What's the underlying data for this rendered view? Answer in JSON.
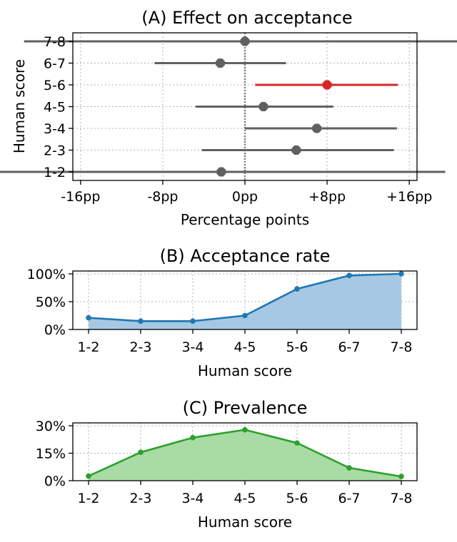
{
  "chart_data": [
    {
      "type": "forest",
      "title": "(A) Effect on acceptance",
      "xlabel": "Percentage points",
      "ylabel": "Human score",
      "xlim": [
        -16,
        16
      ],
      "xticks": [
        -16,
        -8,
        0,
        8,
        16
      ],
      "xtick_labels": [
        "-16pp",
        "-8pp",
        "0pp",
        "+8pp",
        "+16pp"
      ],
      "categories": [
        "1-2",
        "2-3",
        "3-4",
        "4-5",
        "5-6",
        "6-7",
        "7-8"
      ],
      "estimates": [
        -2.3,
        5.0,
        7.0,
        1.8,
        8.0,
        -2.4,
        0.0
      ],
      "ci_low": [
        -24.0,
        -4.2,
        0.0,
        -4.8,
        1.0,
        -8.8,
        -21.5
      ],
      "ci_high": [
        19.5,
        14.5,
        14.8,
        8.6,
        14.9,
        4.0,
        21.8
      ],
      "highlight_index": 4,
      "grid": true,
      "reference_line": 0,
      "colors": {
        "default": "#606060",
        "highlight": "#d62728",
        "reference": "#808080"
      }
    },
    {
      "type": "area",
      "title": "(B) Acceptance rate",
      "xlabel": "Human score",
      "categories": [
        "1-2",
        "2-3",
        "3-4",
        "4-5",
        "5-6",
        "6-7",
        "7-8"
      ],
      "values": [
        21,
        15,
        15,
        25,
        73,
        97,
        100
      ],
      "ylim": [
        0,
        100
      ],
      "yticks": [
        0,
        50,
        100
      ],
      "ytick_labels": [
        "0%",
        "50%",
        "100%"
      ],
      "grid": true,
      "colors": {
        "line": "#1f77b4",
        "fill": "#a6c8e2"
      }
    },
    {
      "type": "area",
      "title": "(C) Prevalence",
      "xlabel": "Human score",
      "categories": [
        "1-2",
        "2-3",
        "3-4",
        "4-5",
        "5-6",
        "6-7",
        "7-8"
      ],
      "values": [
        2.5,
        15.5,
        23.5,
        27.8,
        20.6,
        7.0,
        2.3
      ],
      "ylim": [
        0,
        30
      ],
      "yticks": [
        0,
        15,
        30
      ],
      "ytick_labels": [
        "0%",
        "15%",
        "30%"
      ],
      "grid": true,
      "colors": {
        "line": "#2ca02c",
        "fill": "#a9dba4"
      }
    }
  ]
}
